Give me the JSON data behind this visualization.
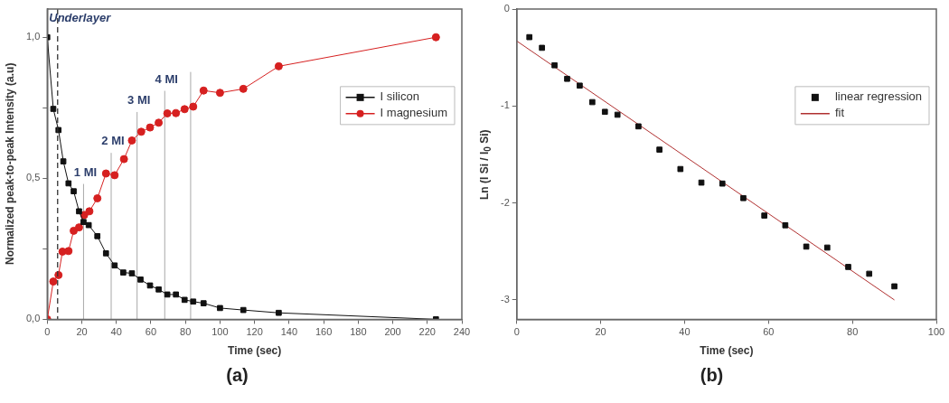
{
  "chart_data": [
    {
      "type": "line",
      "xlabel": "Time (sec)",
      "ylabel": "Normalized peak-to-peak Intensity (a.u)",
      "xlim": [
        0,
        240
      ],
      "xticks": [
        0,
        20,
        40,
        60,
        80,
        100,
        120,
        140,
        160,
        180,
        200,
        220,
        240
      ],
      "ylim": [
        0,
        1.1
      ],
      "yticks": [
        {
          "value": 0,
          "label": "0,0"
        },
        {
          "value": 0.25,
          "label": null
        },
        {
          "value": 0.5,
          "label": "0,5"
        },
        {
          "value": 0.75,
          "label": null
        },
        {
          "value": 1,
          "label": "1,0"
        }
      ],
      "legend": "top right",
      "grid": false,
      "series": [
        {
          "name": "I silicon",
          "color": "#111111",
          "marker": "square",
          "x": [
            0,
            3.5,
            6.5,
            9.3,
            12.3,
            15.3,
            18.4,
            21,
            24,
            29,
            34,
            39,
            44,
            49,
            54,
            59.5,
            64.5,
            69.5,
            74.5,
            79.5,
            84.5,
            90.5,
            100,
            113.5,
            134,
            225
          ],
          "values": [
            1,
            0.746,
            0.671,
            0.56,
            0.482,
            0.454,
            0.383,
            0.345,
            0.334,
            0.295,
            0.234,
            0.191,
            0.166,
            0.163,
            0.141,
            0.12,
            0.106,
            0.088,
            0.088,
            0.069,
            0.063,
            0.057,
            0.04,
            0.033,
            0.023,
            0
          ]
        },
        {
          "name": "I magnesium",
          "color": "#d62020",
          "marker": "circle",
          "x": [
            0,
            3.5,
            6.5,
            8.8,
            12.3,
            15.3,
            18.4,
            21.4,
            24.4,
            29,
            34,
            39,
            44.4,
            49,
            54.4,
            59.5,
            64.5,
            69.5,
            74.5,
            79.5,
            84.5,
            90.5,
            100,
            113.5,
            134,
            225
          ],
          "values": [
            0,
            0.134,
            0.157,
            0.24,
            0.242,
            0.314,
            0.326,
            0.37,
            0.383,
            0.429,
            0.517,
            0.511,
            0.568,
            0.634,
            0.665,
            0.68,
            0.697,
            0.73,
            0.731,
            0.745,
            0.754,
            0.811,
            0.803,
            0.817,
            0.897,
            1
          ]
        },
        {
          "name": "1 MI",
          "color": "#a8a8a8",
          "marker": "none",
          "x": [
            21,
            21
          ],
          "values": [
            0,
            0.48
          ]
        },
        {
          "name": "2 MI",
          "color": "#a8a8a8",
          "marker": "none",
          "x": [
            37,
            37
          ],
          "values": [
            0,
            0.59
          ]
        },
        {
          "name": "3 MI",
          "color": "#a8a8a8",
          "marker": "none",
          "x": [
            52,
            52
          ],
          "values": [
            0,
            0.735
          ]
        },
        {
          "name": "4 MI",
          "color": "#a8a8a8",
          "marker": "none",
          "x": [
            68,
            68
          ],
          "values": [
            0,
            0.81
          ]
        },
        {
          "color": "#a8a8a8",
          "marker": "none",
          "x": [
            83,
            83
          ],
          "values": [
            0,
            0.877
          ]
        }
      ],
      "ref_lines": [
        {
          "axis": "x",
          "value": 6,
          "label": "Underlayer",
          "color": "#333333",
          "line_style": "dashed"
        }
      ],
      "annotations": [
        "(a)"
      ]
    },
    {
      "type": "scatter",
      "xlabel": "Time (sec)",
      "ylabel": "Ln (I Si / I$_{0}$ Si)",
      "xlim": [
        0,
        100
      ],
      "xticks": [
        0,
        20,
        40,
        60,
        80,
        100
      ],
      "ylim": [
        -3.2,
        0
      ],
      "yticks": [
        -3,
        -2,
        -1,
        0
      ],
      "legend": "top right",
      "grid": false,
      "series": [
        {
          "name": "linear regression",
          "color": "#111111",
          "marker": "square",
          "x": [
            3,
            6,
            9,
            12,
            15,
            18,
            21,
            24,
            29,
            34,
            39,
            44,
            49,
            54,
            59,
            64,
            69,
            74,
            79,
            84,
            90
          ],
          "values": [
            -0.29,
            -0.4,
            -0.58,
            -0.72,
            -0.79,
            -0.96,
            -1.06,
            -1.09,
            -1.21,
            -1.45,
            -1.65,
            -1.79,
            -1.8,
            -1.95,
            -2.13,
            -2.23,
            -2.45,
            -2.46,
            -2.66,
            -2.73,
            -2.86
          ]
        },
        {
          "name": "fit",
          "type": "line",
          "color": "#b03030",
          "marker": "none",
          "x": [
            0,
            90
          ],
          "values": [
            -0.33,
            -3.0
          ]
        }
      ],
      "annotations": [
        "(b)"
      ]
    }
  ]
}
